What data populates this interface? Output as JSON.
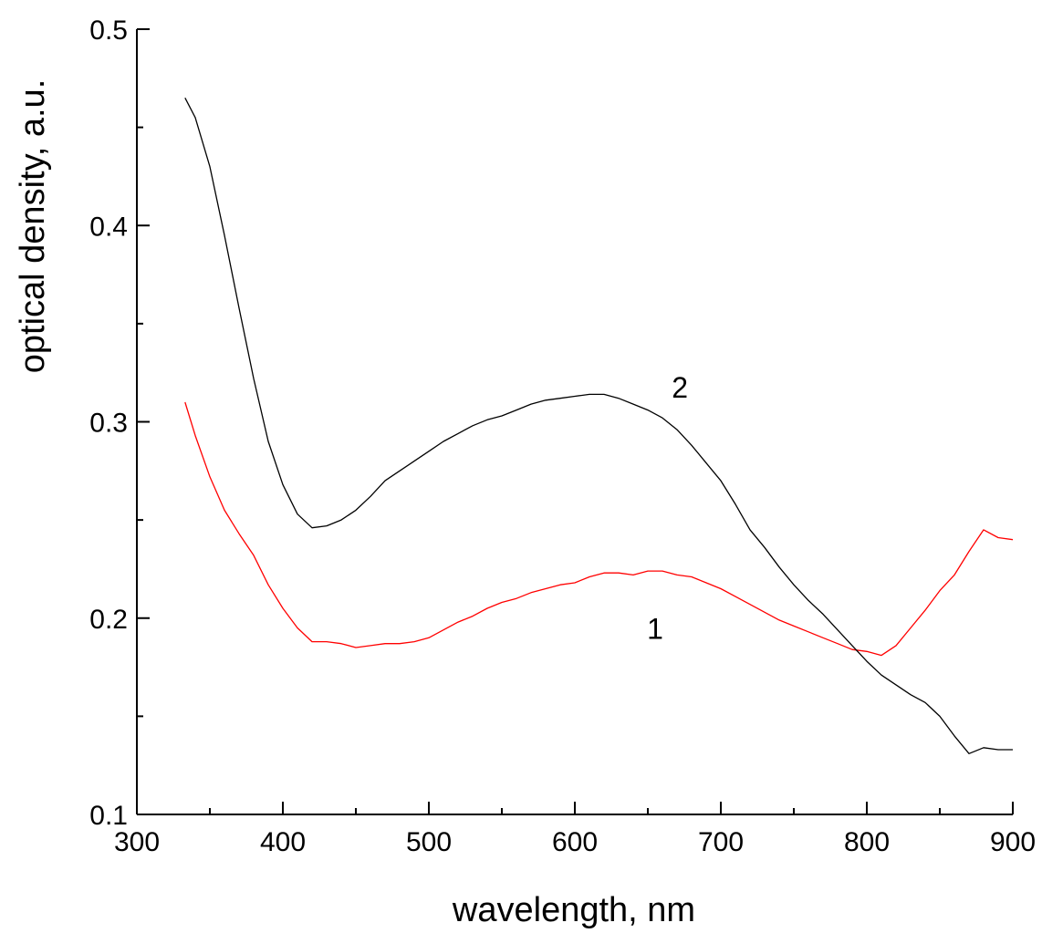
{
  "chart_data": {
    "type": "line",
    "title": "",
    "xlabel": "wavelength, nm",
    "ylabel": "optical density, a.u.",
    "xlim": [
      300,
      900
    ],
    "ylim": [
      0.1,
      0.5
    ],
    "grid": false,
    "legend": "none",
    "x_ticks_major": [
      300,
      400,
      500,
      600,
      700,
      800,
      900
    ],
    "x_ticks_minor": [
      350,
      450,
      550,
      650,
      750,
      850
    ],
    "x_tick_labels": [
      "300",
      "400",
      "500",
      "600",
      "700",
      "800",
      "900"
    ],
    "y_ticks_major": [
      0.1,
      0.2,
      0.3,
      0.4,
      0.5
    ],
    "y_ticks_minor": [
      0.15,
      0.25,
      0.35,
      0.45
    ],
    "y_tick_labels": [
      "0.1",
      "0.2",
      "0.3",
      "0.4",
      "0.5"
    ],
    "series": [
      {
        "name": "1",
        "color": "#ff0000",
        "label_position": [
          655,
          0.195
        ],
        "x": [
          333,
          340,
          350,
          360,
          370,
          380,
          390,
          400,
          410,
          420,
          430,
          440,
          450,
          460,
          470,
          480,
          490,
          500,
          510,
          520,
          530,
          540,
          550,
          560,
          570,
          580,
          590,
          600,
          610,
          620,
          630,
          640,
          650,
          660,
          670,
          680,
          690,
          700,
          710,
          720,
          730,
          740,
          750,
          760,
          770,
          780,
          790,
          800,
          810,
          820,
          830,
          840,
          850,
          860,
          870,
          880,
          890,
          900
        ],
        "y": [
          0.31,
          0.293,
          0.272,
          0.255,
          0.243,
          0.232,
          0.217,
          0.205,
          0.195,
          0.188,
          0.188,
          0.187,
          0.185,
          0.186,
          0.187,
          0.187,
          0.188,
          0.19,
          0.194,
          0.198,
          0.201,
          0.205,
          0.208,
          0.21,
          0.213,
          0.215,
          0.217,
          0.218,
          0.221,
          0.223,
          0.223,
          0.222,
          0.224,
          0.224,
          0.222,
          0.221,
          0.218,
          0.215,
          0.211,
          0.207,
          0.203,
          0.199,
          0.196,
          0.193,
          0.19,
          0.187,
          0.184,
          0.183,
          0.181,
          0.186,
          0.195,
          0.204,
          0.214,
          0.222,
          0.234,
          0.245,
          0.241,
          0.24
        ]
      },
      {
        "name": "2",
        "color": "#000000",
        "label_position": [
          672,
          0.318
        ],
        "x": [
          333,
          340,
          350,
          360,
          370,
          380,
          390,
          400,
          410,
          420,
          430,
          440,
          450,
          460,
          470,
          480,
          490,
          500,
          510,
          520,
          530,
          540,
          550,
          560,
          570,
          580,
          590,
          600,
          610,
          620,
          630,
          640,
          650,
          660,
          670,
          680,
          690,
          700,
          710,
          720,
          730,
          740,
          750,
          760,
          770,
          780,
          790,
          800,
          810,
          820,
          830,
          840,
          850,
          860,
          870,
          880,
          890,
          900
        ],
        "y": [
          0.465,
          0.455,
          0.43,
          0.395,
          0.358,
          0.322,
          0.29,
          0.268,
          0.253,
          0.246,
          0.247,
          0.25,
          0.255,
          0.262,
          0.27,
          0.275,
          0.28,
          0.285,
          0.29,
          0.294,
          0.298,
          0.301,
          0.303,
          0.306,
          0.309,
          0.311,
          0.312,
          0.313,
          0.314,
          0.314,
          0.312,
          0.309,
          0.306,
          0.302,
          0.296,
          0.288,
          0.279,
          0.27,
          0.258,
          0.245,
          0.236,
          0.226,
          0.217,
          0.209,
          0.202,
          0.194,
          0.186,
          0.178,
          0.171,
          0.166,
          0.161,
          0.157,
          0.15,
          0.14,
          0.131,
          0.134,
          0.133,
          0.133
        ]
      }
    ]
  }
}
